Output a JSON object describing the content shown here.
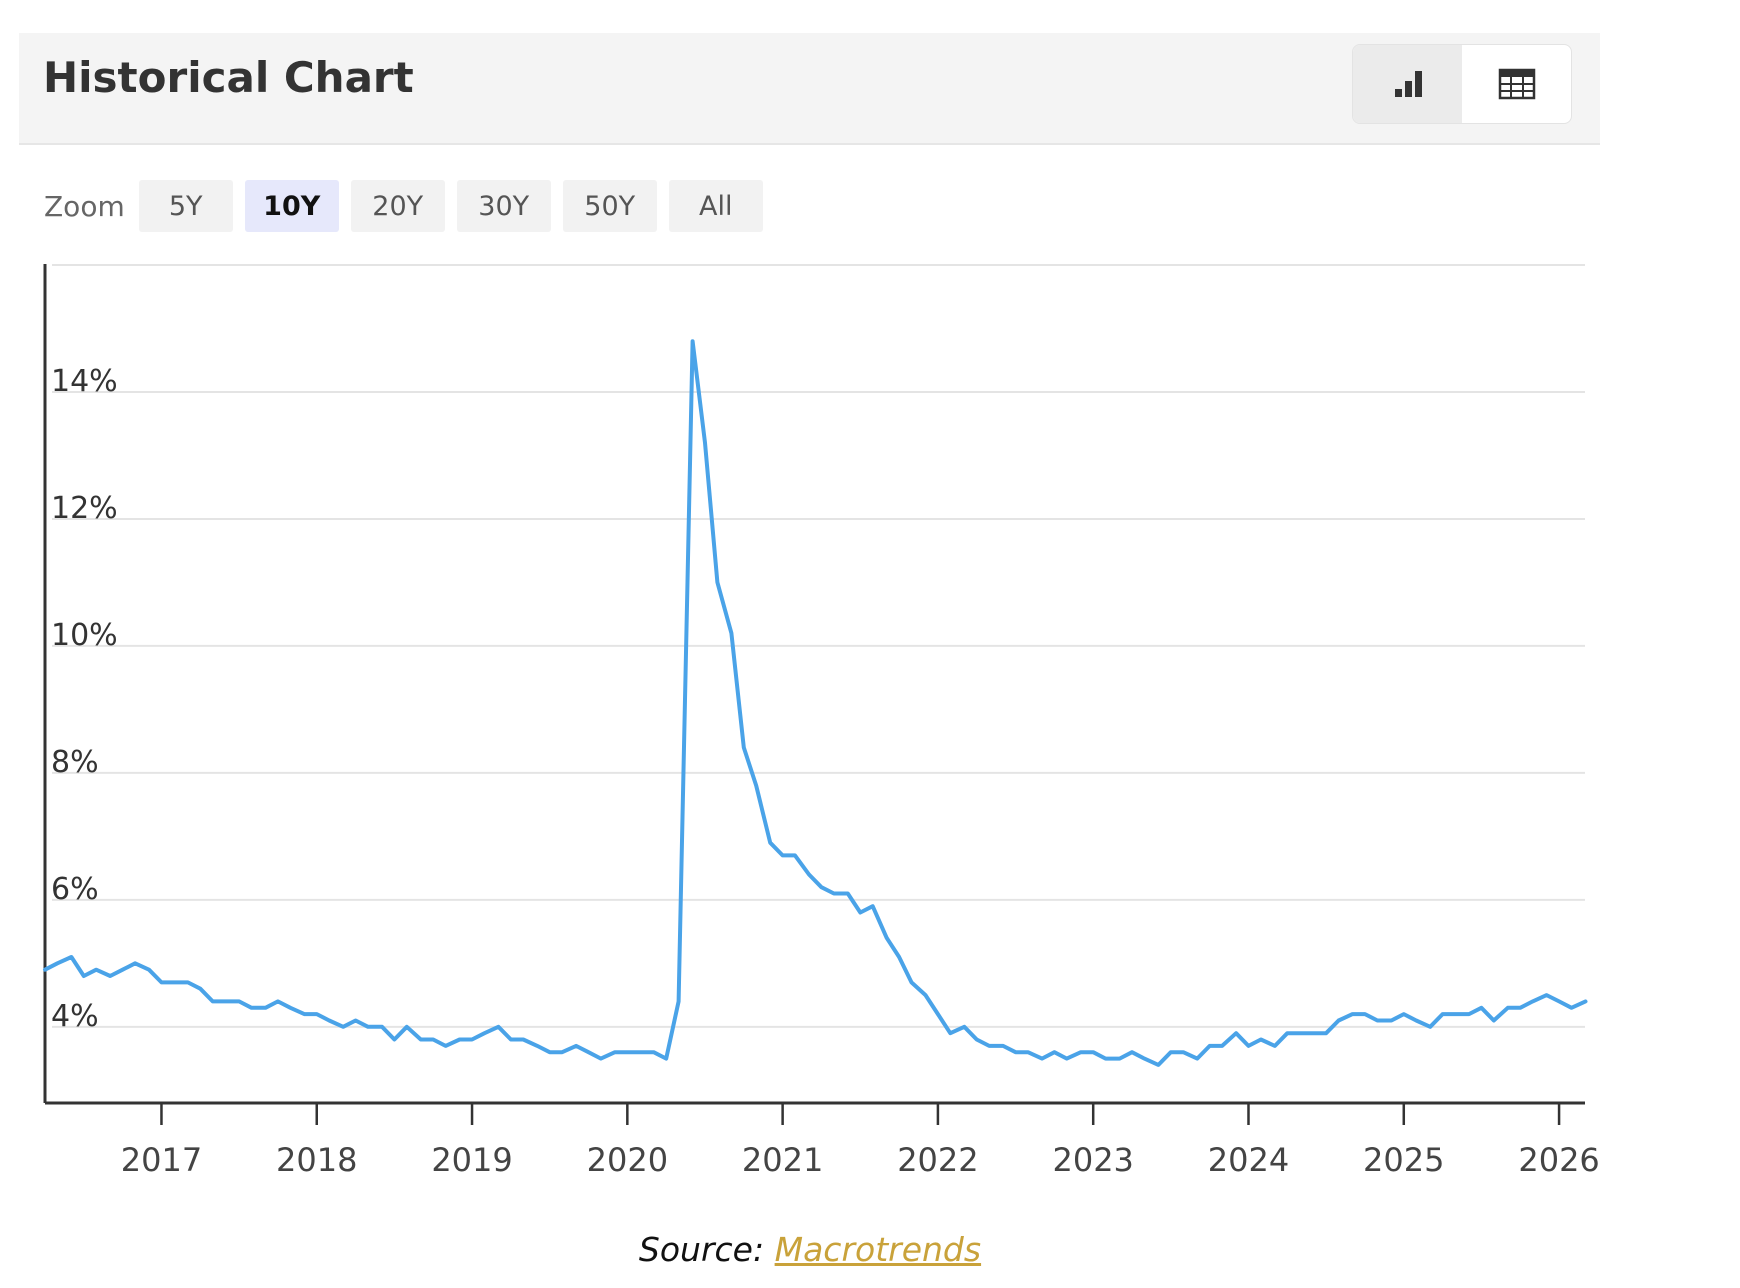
{
  "header": {
    "title": "Historical Chart",
    "view_toggle": {
      "active": "chart",
      "icons": [
        "bar-chart-icon",
        "table-icon"
      ]
    }
  },
  "zoom": {
    "label": "Zoom",
    "options": [
      "5Y",
      "10Y",
      "20Y",
      "30Y",
      "50Y",
      "All"
    ],
    "active": "10Y"
  },
  "colors": {
    "line": "#4aa3e8",
    "active_zoom_bg": "#e6e8fb",
    "link": "#c9a23a"
  },
  "chart_data": {
    "type": "line",
    "ylim": [
      2.8,
      16
    ],
    "yticks": [
      4,
      6,
      8,
      10,
      12,
      14
    ],
    "ytick_labels": [
      "4%",
      "6%",
      "8%",
      "10%",
      "12%",
      "14%"
    ],
    "gridlines": [
      4,
      6,
      8,
      10,
      12,
      14,
      16
    ],
    "grid": true,
    "xlim": [
      2016.25,
      2026.167
    ],
    "xticks": [
      2017,
      2018,
      2019,
      2020,
      2021,
      2022,
      2023,
      2024,
      2025,
      2026
    ],
    "xtick_labels": [
      "2017",
      "2018",
      "2019",
      "2020",
      "2021",
      "2022",
      "2023",
      "2024",
      "2025",
      "2026"
    ],
    "series": [
      {
        "values": [
          [
            2016.25,
            4.9
          ],
          [
            2016.33,
            5.0
          ],
          [
            2016.42,
            5.1
          ],
          [
            2016.5,
            4.8
          ],
          [
            2016.58,
            4.9
          ],
          [
            2016.67,
            4.8
          ],
          [
            2016.75,
            4.9
          ],
          [
            2016.83,
            5.0
          ],
          [
            2016.92,
            4.9
          ],
          [
            2017.0,
            4.7
          ],
          [
            2017.08,
            4.7
          ],
          [
            2017.17,
            4.7
          ],
          [
            2017.25,
            4.6
          ],
          [
            2017.33,
            4.4
          ],
          [
            2017.42,
            4.4
          ],
          [
            2017.5,
            4.4
          ],
          [
            2017.58,
            4.3
          ],
          [
            2017.67,
            4.3
          ],
          [
            2017.75,
            4.4
          ],
          [
            2017.83,
            4.3
          ],
          [
            2017.92,
            4.2
          ],
          [
            2018.0,
            4.2
          ],
          [
            2018.08,
            4.1
          ],
          [
            2018.17,
            4.0
          ],
          [
            2018.25,
            4.1
          ],
          [
            2018.33,
            4.0
          ],
          [
            2018.42,
            4.0
          ],
          [
            2018.5,
            3.8
          ],
          [
            2018.58,
            4.0
          ],
          [
            2018.67,
            3.8
          ],
          [
            2018.75,
            3.8
          ],
          [
            2018.83,
            3.7
          ],
          [
            2018.92,
            3.8
          ],
          [
            2019.0,
            3.8
          ],
          [
            2019.08,
            3.9
          ],
          [
            2019.17,
            4.0
          ],
          [
            2019.25,
            3.8
          ],
          [
            2019.33,
            3.8
          ],
          [
            2019.42,
            3.7
          ],
          [
            2019.5,
            3.6
          ],
          [
            2019.58,
            3.6
          ],
          [
            2019.67,
            3.7
          ],
          [
            2019.75,
            3.6
          ],
          [
            2019.83,
            3.5
          ],
          [
            2019.92,
            3.6
          ],
          [
            2020.0,
            3.6
          ],
          [
            2020.08,
            3.6
          ],
          [
            2020.17,
            3.6
          ],
          [
            2020.25,
            3.5
          ],
          [
            2020.33,
            4.4
          ],
          [
            2020.42,
            14.8
          ],
          [
            2020.5,
            13.2
          ],
          [
            2020.58,
            11.0
          ],
          [
            2020.67,
            10.2
          ],
          [
            2020.75,
            8.4
          ],
          [
            2020.83,
            7.8
          ],
          [
            2020.92,
            6.9
          ],
          [
            2021.0,
            6.7
          ],
          [
            2021.08,
            6.7
          ],
          [
            2021.17,
            6.4
          ],
          [
            2021.25,
            6.2
          ],
          [
            2021.33,
            6.1
          ],
          [
            2021.42,
            6.1
          ],
          [
            2021.5,
            5.8
          ],
          [
            2021.58,
            5.9
          ],
          [
            2021.67,
            5.4
          ],
          [
            2021.75,
            5.1
          ],
          [
            2021.83,
            4.7
          ],
          [
            2021.92,
            4.5
          ],
          [
            2022.0,
            4.2
          ],
          [
            2022.08,
            3.9
          ],
          [
            2022.17,
            4.0
          ],
          [
            2022.25,
            3.8
          ],
          [
            2022.33,
            3.7
          ],
          [
            2022.42,
            3.7
          ],
          [
            2022.5,
            3.6
          ],
          [
            2022.58,
            3.6
          ],
          [
            2022.67,
            3.5
          ],
          [
            2022.75,
            3.6
          ],
          [
            2022.83,
            3.5
          ],
          [
            2022.92,
            3.6
          ],
          [
            2023.0,
            3.6
          ],
          [
            2023.08,
            3.5
          ],
          [
            2023.17,
            3.5
          ],
          [
            2023.25,
            3.6
          ],
          [
            2023.33,
            3.5
          ],
          [
            2023.42,
            3.4
          ],
          [
            2023.5,
            3.6
          ],
          [
            2023.58,
            3.6
          ],
          [
            2023.67,
            3.5
          ],
          [
            2023.75,
            3.7
          ],
          [
            2023.83,
            3.7
          ],
          [
            2023.92,
            3.9
          ],
          [
            2024.0,
            3.7
          ],
          [
            2024.08,
            3.8
          ],
          [
            2024.17,
            3.7
          ],
          [
            2024.25,
            3.9
          ],
          [
            2024.33,
            3.9
          ],
          [
            2024.42,
            3.9
          ],
          [
            2024.5,
            3.9
          ],
          [
            2024.58,
            4.1
          ],
          [
            2024.67,
            4.2
          ],
          [
            2024.75,
            4.2
          ],
          [
            2024.83,
            4.1
          ],
          [
            2024.92,
            4.1
          ],
          [
            2025.0,
            4.2
          ],
          [
            2025.08,
            4.1
          ],
          [
            2025.17,
            4.0
          ],
          [
            2025.25,
            4.2
          ],
          [
            2025.33,
            4.2
          ],
          [
            2025.42,
            4.2
          ],
          [
            2025.5,
            4.3
          ],
          [
            2025.58,
            4.1
          ],
          [
            2025.67,
            4.3
          ],
          [
            2025.75,
            4.3
          ],
          [
            2025.83,
            4.4
          ],
          [
            2025.92,
            4.5
          ],
          [
            2026.0,
            4.4
          ],
          [
            2026.08,
            4.3
          ],
          [
            2026.17,
            4.4
          ]
        ]
      }
    ]
  },
  "source": {
    "prefix": "Source: ",
    "link_text": "Macrotrends"
  }
}
